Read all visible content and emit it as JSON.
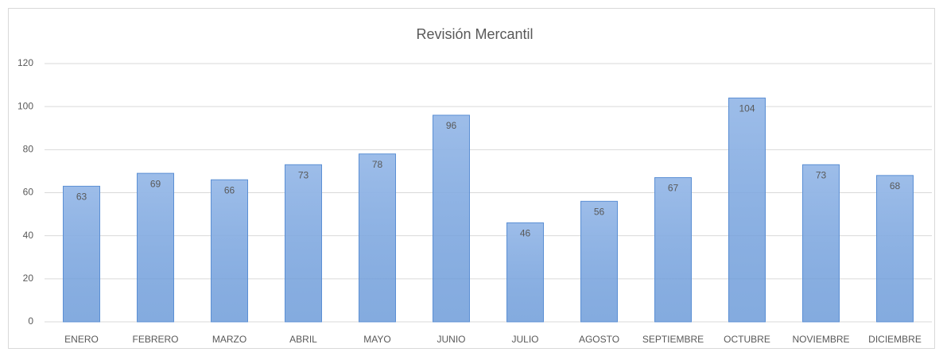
{
  "chart_data": {
    "type": "bar",
    "title": "Revisión  Mercantil",
    "categories": [
      "ENERO",
      "FEBRERO",
      "MARZO",
      "ABRIL",
      "MAYO",
      "JUNIO",
      "JULIO",
      "AGOSTO",
      "SEPTIEMBRE",
      "OCTUBRE",
      "NOVIEMBRE",
      "DICIEMBRE"
    ],
    "values": [
      63,
      69,
      66,
      73,
      78,
      96,
      46,
      56,
      67,
      104,
      73,
      68
    ],
    "color": "#9dbde9",
    "border_color": "#5b8fd4",
    "ylim": [
      0,
      120
    ],
    "yticks": [
      0,
      20,
      40,
      60,
      80,
      100,
      120
    ],
    "grid": true
  }
}
